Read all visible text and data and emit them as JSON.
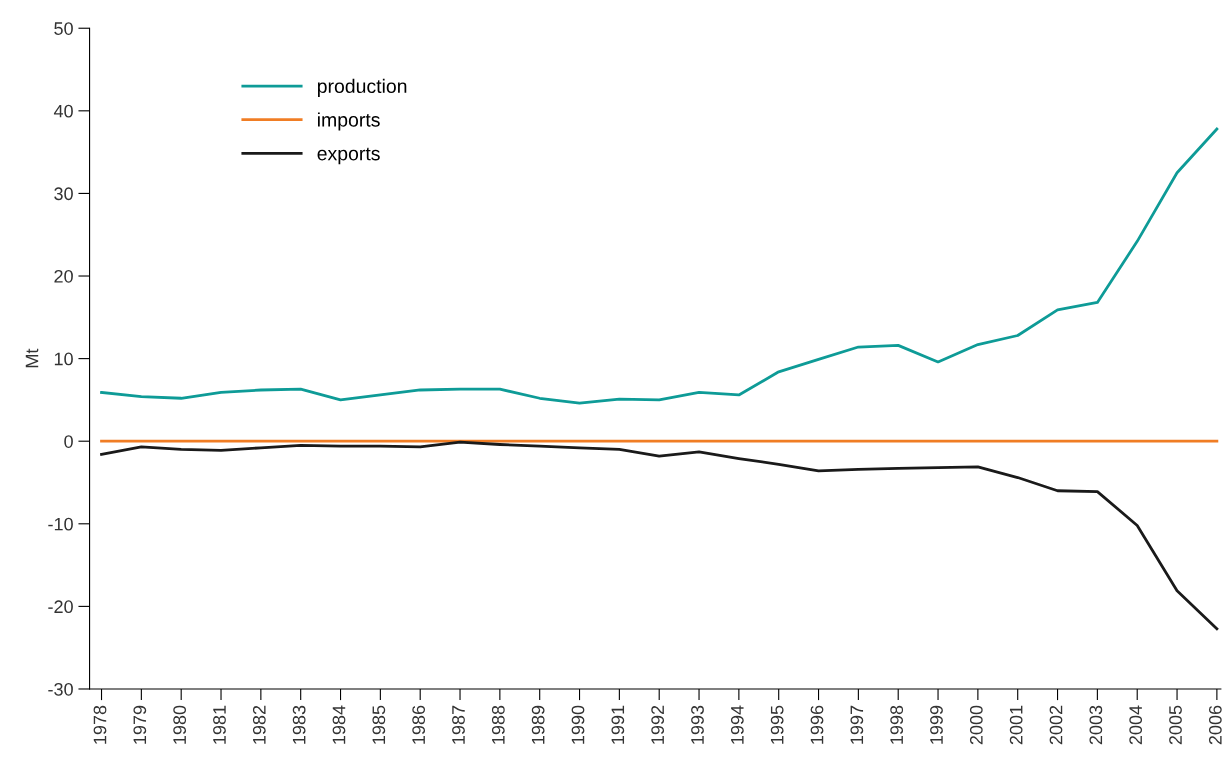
{
  "chart_data": {
    "type": "line",
    "ylabel": "Mt",
    "categories": [
      "1978",
      "1979",
      "1980",
      "1981",
      "1982",
      "1983",
      "1984",
      "1985",
      "1986",
      "1987",
      "1988",
      "1989",
      "1990",
      "1991",
      "1992",
      "1993",
      "1994",
      "1995",
      "1996",
      "1997",
      "1998",
      "1999",
      "2000",
      "2001",
      "2002",
      "2003",
      "2004",
      "2005",
      "2006"
    ],
    "series": [
      {
        "name": "production",
        "color": "#0e9b97",
        "values": [
          5.9,
          5.4,
          5.2,
          5.9,
          6.2,
          6.3,
          5.0,
          5.6,
          6.2,
          6.3,
          6.3,
          5.2,
          4.6,
          5.1,
          5.0,
          5.9,
          5.6,
          8.4,
          9.9,
          11.4,
          11.6,
          9.6,
          11.7,
          12.8,
          15.9,
          16.8,
          24.2,
          32.5,
          37.8
        ]
      },
      {
        "name": "imports",
        "color": "#f07d24",
        "values": [
          0,
          0,
          0,
          0,
          0,
          0,
          0,
          0,
          0,
          0,
          0,
          0,
          0,
          0,
          0,
          0,
          0,
          0,
          0,
          0,
          0,
          0,
          0,
          0,
          0,
          0,
          0,
          0,
          0
        ]
      },
      {
        "name": "exports",
        "color": "#1a1a1a",
        "values": [
          -1.6,
          -0.7,
          -1.0,
          -1.1,
          -0.8,
          -0.5,
          -0.6,
          -0.6,
          -0.7,
          -0.1,
          -0.4,
          -0.6,
          -0.8,
          -1.0,
          -1.8,
          -1.3,
          -2.1,
          -2.8,
          -3.6,
          -3.4,
          -3.3,
          -3.2,
          -3.1,
          -4.4,
          -6.0,
          -6.1,
          -10.2,
          -18.1,
          -22.7
        ]
      }
    ],
    "ylim": [
      -30,
      50
    ],
    "yticks": [
      -30,
      -20,
      -10,
      0,
      10,
      20,
      30,
      40,
      50
    ],
    "grid": false,
    "legend": "top left",
    "line_style": "solid",
    "marker": "none"
  }
}
